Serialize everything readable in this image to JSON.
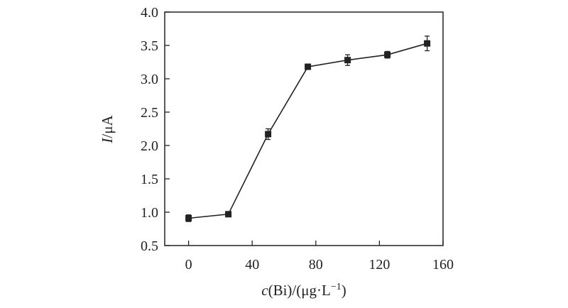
{
  "chart_data": {
    "type": "line",
    "xlabel": {
      "var": "c",
      "unit": "(Bi)/(μg·L",
      "exp": "−1",
      "close": ")"
    },
    "ylabel": {
      "var": "I",
      "unit": "/μA"
    },
    "xlim": [
      -15,
      160
    ],
    "ylim": [
      0.5,
      4.0
    ],
    "xticks": [
      0,
      40,
      80,
      120,
      160
    ],
    "yticks": [
      0.5,
      1.0,
      1.5,
      2.0,
      2.5,
      3.0,
      3.5,
      4.0
    ],
    "x_tick_labels": [
      "0",
      "40",
      "80",
      "120",
      "160"
    ],
    "y_tick_labels": [
      "0.5",
      "1.0",
      "1.5",
      "2.0",
      "2.5",
      "3.0",
      "3.5",
      "4.0"
    ],
    "grid": false,
    "marker": "square",
    "series": [
      {
        "x": [
          0,
          25,
          50,
          75,
          100,
          125,
          150
        ],
        "y": [
          0.91,
          0.97,
          2.17,
          3.18,
          3.28,
          3.36,
          3.53
        ],
        "err": [
          0.05,
          0.03,
          0.08,
          0.04,
          0.08,
          0.05,
          0.11
        ]
      }
    ],
    "colors": {
      "line": "#222222",
      "axis": "#222222"
    }
  }
}
